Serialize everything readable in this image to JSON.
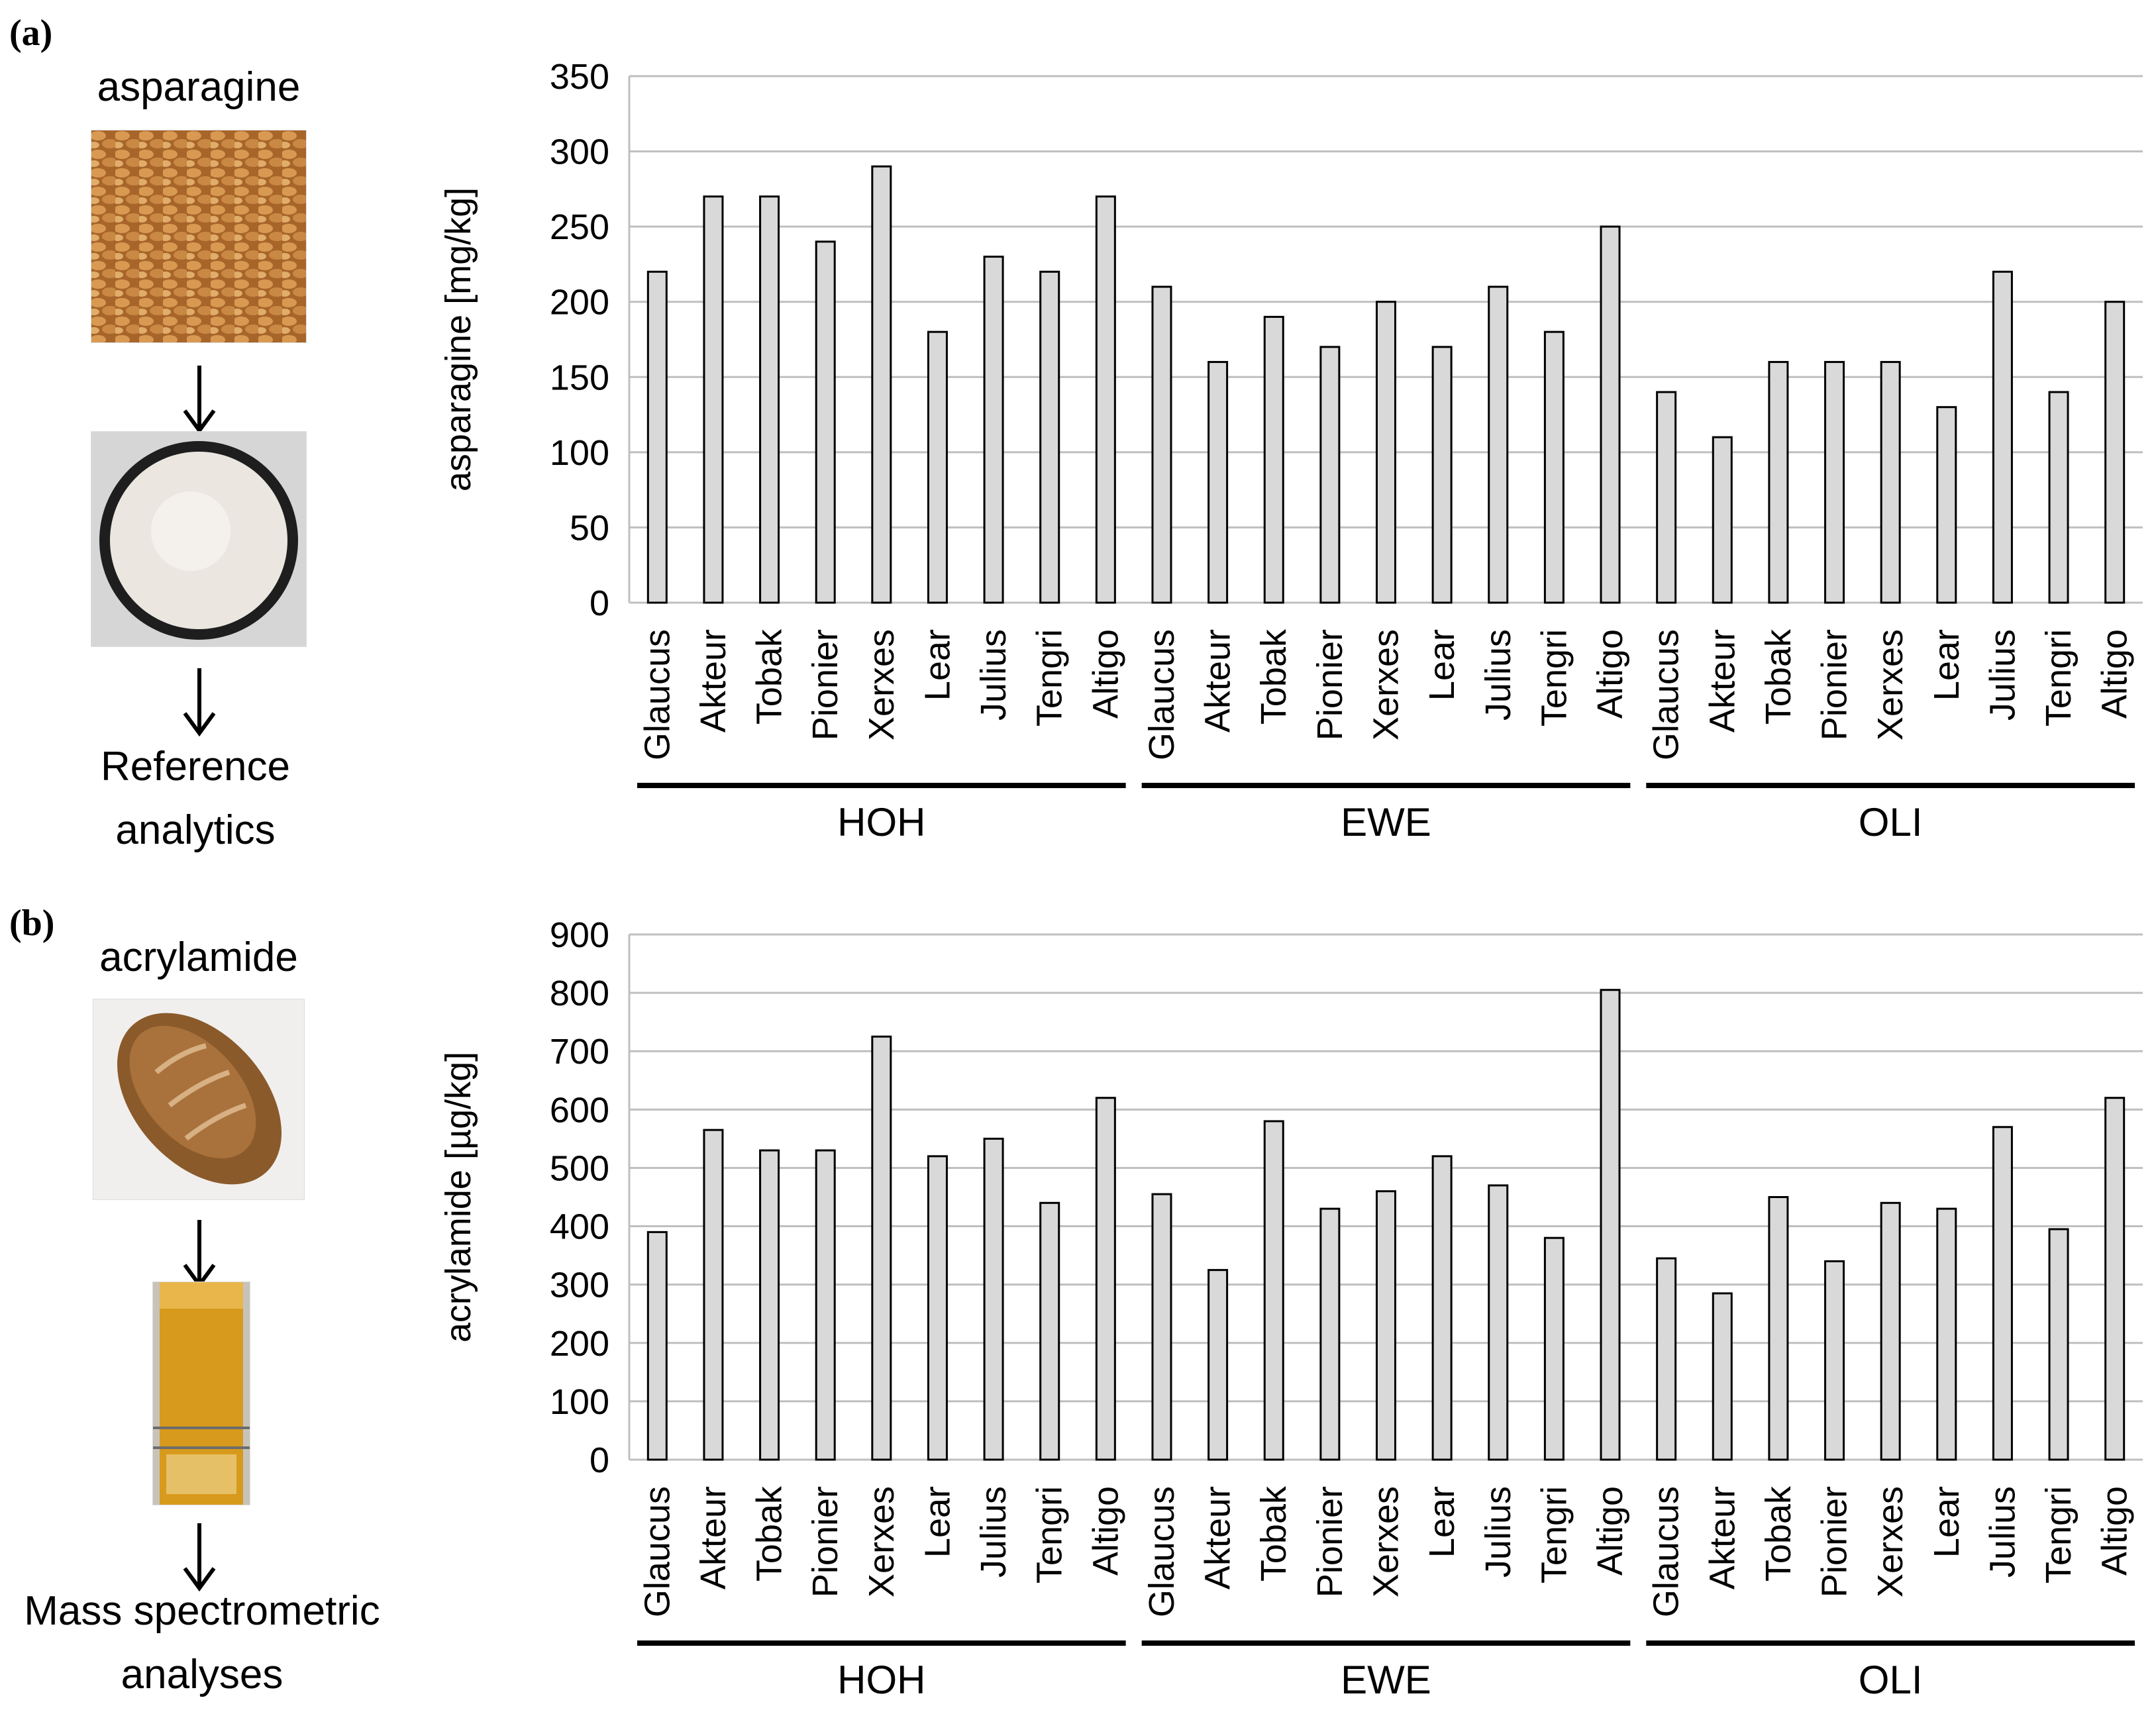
{
  "panels": [
    {
      "label": "(a)",
      "side_title": "asparagine",
      "caption_lines": [
        "Reference",
        "analytics"
      ],
      "photo_top": "wheat-grains",
      "photo_bottom": "flour-bowl"
    },
    {
      "label": "(b)",
      "side_title": "acrylamide",
      "caption_lines": [
        "Mass spectrometric",
        "analyses"
      ],
      "photo_top": "bread-loaf",
      "photo_bottom": "sample-tube"
    }
  ],
  "colors": {
    "bar_fill": "#d9d9d9",
    "bar_stroke": "#000000",
    "grid": "#bfbfbf",
    "axis": "#bfbfbf"
  },
  "chart_data": [
    {
      "type": "bar",
      "title": "",
      "xlabel": "",
      "ylabel": "asparagine [mg/kg]",
      "ylim": [
        0,
        350
      ],
      "yticks": [
        0,
        50,
        100,
        150,
        200,
        250,
        300,
        350
      ],
      "groups": [
        "HOH",
        "EWE",
        "OLI"
      ],
      "categories": [
        "Glaucus",
        "Akteur",
        "Tobak",
        "Pionier",
        "Xerxes",
        "Lear",
        "Julius",
        "Tengri",
        "Altigo"
      ],
      "series": [
        {
          "name": "HOH",
          "values": [
            220,
            270,
            270,
            240,
            290,
            180,
            230,
            220,
            270
          ]
        },
        {
          "name": "EWE",
          "values": [
            210,
            160,
            190,
            170,
            200,
            170,
            210,
            180,
            250
          ]
        },
        {
          "name": "OLI",
          "values": [
            140,
            110,
            160,
            160,
            160,
            130,
            220,
            140,
            200
          ]
        }
      ]
    },
    {
      "type": "bar",
      "title": "",
      "xlabel": "",
      "ylabel": "acrylamide [µg/kg]",
      "ylim": [
        0,
        900
      ],
      "yticks": [
        0,
        100,
        200,
        300,
        400,
        500,
        600,
        700,
        800,
        900
      ],
      "groups": [
        "HOH",
        "EWE",
        "OLI"
      ],
      "categories": [
        "Glaucus",
        "Akteur",
        "Tobak",
        "Pionier",
        "Xerxes",
        "Lear",
        "Julius",
        "Tengri",
        "Altigo"
      ],
      "series": [
        {
          "name": "HOH",
          "values": [
            390,
            565,
            530,
            530,
            725,
            520,
            550,
            440,
            620
          ]
        },
        {
          "name": "EWE",
          "values": [
            455,
            325,
            580,
            430,
            460,
            520,
            470,
            380,
            805
          ]
        },
        {
          "name": "OLI",
          "values": [
            345,
            285,
            450,
            340,
            440,
            430,
            570,
            395,
            620
          ]
        }
      ]
    }
  ]
}
